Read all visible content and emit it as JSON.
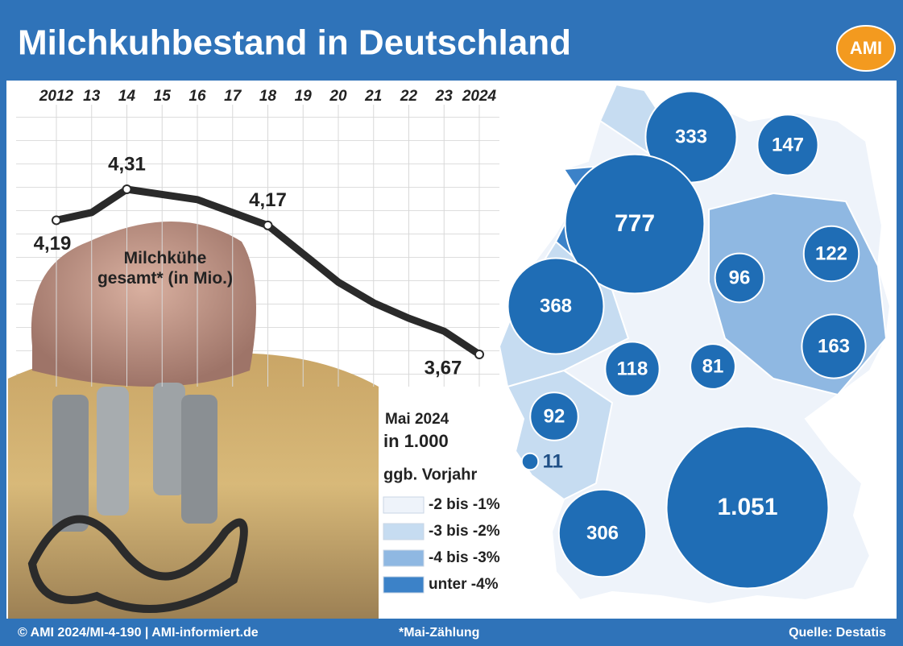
{
  "title": "Milchkuhbestand in Deutschland",
  "logo": "AMI",
  "chart_data": [
    {
      "type": "line",
      "x": [
        2012,
        2013,
        2014,
        2015,
        2016,
        2017,
        2018,
        2019,
        2020,
        2021,
        2022,
        2023,
        2024
      ],
      "xlim": [
        2012,
        2024
      ],
      "xticks": [
        2012,
        {
          "value": 2013,
          "label": "13"
        },
        {
          "value": 2014,
          "label": "14"
        },
        {
          "value": 2015,
          "label": "15"
        },
        {
          "value": 2016,
          "label": "16"
        },
        {
          "value": 2017,
          "label": "17"
        },
        {
          "value": 2018,
          "label": "18"
        },
        {
          "value": 2019,
          "label": "19"
        },
        {
          "value": 2020,
          "label": "20"
        },
        {
          "value": 2021,
          "label": "21"
        },
        {
          "value": 2022,
          "label": "22"
        },
        {
          "value": 2023,
          "label": "23"
        },
        2024
      ],
      "series": [
        {
          "name": "Milchkühe gesamt* (in Mio.)",
          "color": "#2a2a2a",
          "values": [
            4.19,
            4.22,
            4.31,
            4.29,
            4.27,
            4.22,
            4.17,
            4.06,
            3.95,
            3.87,
            3.81,
            3.76,
            3.67
          ],
          "value_labels": [
            "4,19",
            null,
            "4,31",
            null,
            null,
            null,
            "4,17",
            null,
            null,
            null,
            null,
            null,
            "3,67"
          ]
        }
      ]
    },
    {
      "type": "bubble-map",
      "subtitle": "Mai 2024",
      "unit": "in 1.000",
      "color": "#1f6db5",
      "values": [
        333,
        147,
        777,
        122,
        96,
        368,
        163,
        118,
        81,
        92,
        11,
        306,
        1051
      ],
      "value_labels": [
        null,
        null,
        null,
        null,
        null,
        null,
        null,
        null,
        null,
        null,
        null,
        null,
        "1.051"
      ],
      "legend_title": "ggb. Vorjahr",
      "legend": [
        {
          "label": "-2 bis -1%",
          "color": "#eef3fa"
        },
        {
          "label": "-3 bis -2%",
          "color": "#c6dcf1"
        },
        {
          "label": "-4 bis -3%",
          "color": "#8fb8e2"
        },
        {
          "label": "unter -4%",
          "color": "#3c82c8"
        }
      ]
    }
  ],
  "footer": {
    "left": "© AMI 2024/MI-4-190 | AMI-informiert.de",
    "center": "*Mai-Zählung",
    "right": "Quelle: Destatis"
  }
}
